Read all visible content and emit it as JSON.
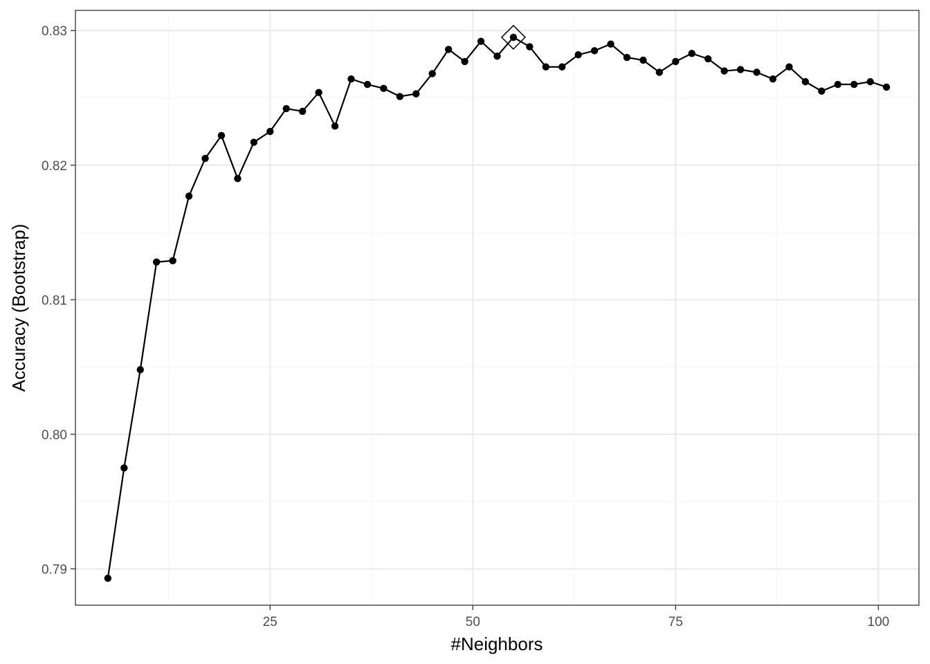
{
  "chart_data": {
    "type": "line",
    "title": "",
    "xlabel": "#Neighbors",
    "ylabel": "Accuracy (Bootstrap)",
    "xlim": [
      1,
      105
    ],
    "ylim": [
      0.7873,
      0.8315
    ],
    "x_ticks": [
      25,
      50,
      75,
      100
    ],
    "x_tick_labels": [
      "25",
      "50",
      "75",
      "100"
    ],
    "y_ticks": [
      0.79,
      0.8,
      0.81,
      0.82,
      0.83
    ],
    "y_tick_labels": [
      "0.79",
      "0.80",
      "0.81",
      "0.82",
      "0.83"
    ],
    "grid": true,
    "legend": "none",
    "series": [
      {
        "x": [
          5,
          7,
          9,
          11,
          13,
          15,
          17,
          19,
          21,
          23,
          25,
          27,
          29,
          31,
          33,
          35,
          37,
          39,
          41,
          43,
          45,
          47,
          49,
          51,
          53,
          55,
          57,
          59,
          61,
          63,
          65,
          67,
          69,
          71,
          73,
          75,
          77,
          79,
          81,
          83,
          85,
          87,
          89,
          91,
          93,
          95,
          97,
          99,
          101
        ],
        "values": [
          0.7893,
          0.7975,
          0.8048,
          0.8128,
          0.8129,
          0.8177,
          0.8205,
          0.8222,
          0.819,
          0.8217,
          0.8225,
          0.8242,
          0.824,
          0.8254,
          0.8229,
          0.8264,
          0.826,
          0.8257,
          0.8251,
          0.8253,
          0.8268,
          0.8286,
          0.8277,
          0.8292,
          0.8281,
          0.8295,
          0.8288,
          0.8273,
          0.8273,
          0.8282,
          0.8285,
          0.829,
          0.828,
          0.8278,
          0.8269,
          0.8277,
          0.8283,
          0.8279,
          0.827,
          0.8271,
          0.8269,
          0.8264,
          0.8273,
          0.8262,
          0.8255,
          0.826,
          0.826,
          0.8262,
          0.8258
        ]
      }
    ],
    "best": {
      "x": 55,
      "y": 0.8295,
      "marker": "diamond"
    },
    "colors": {
      "line": "#000000",
      "grid_major": "#ebebeb",
      "grid_minor": "#f5f5f5",
      "panel_border": "#333333",
      "tick_text": "#4d4d4d"
    }
  }
}
